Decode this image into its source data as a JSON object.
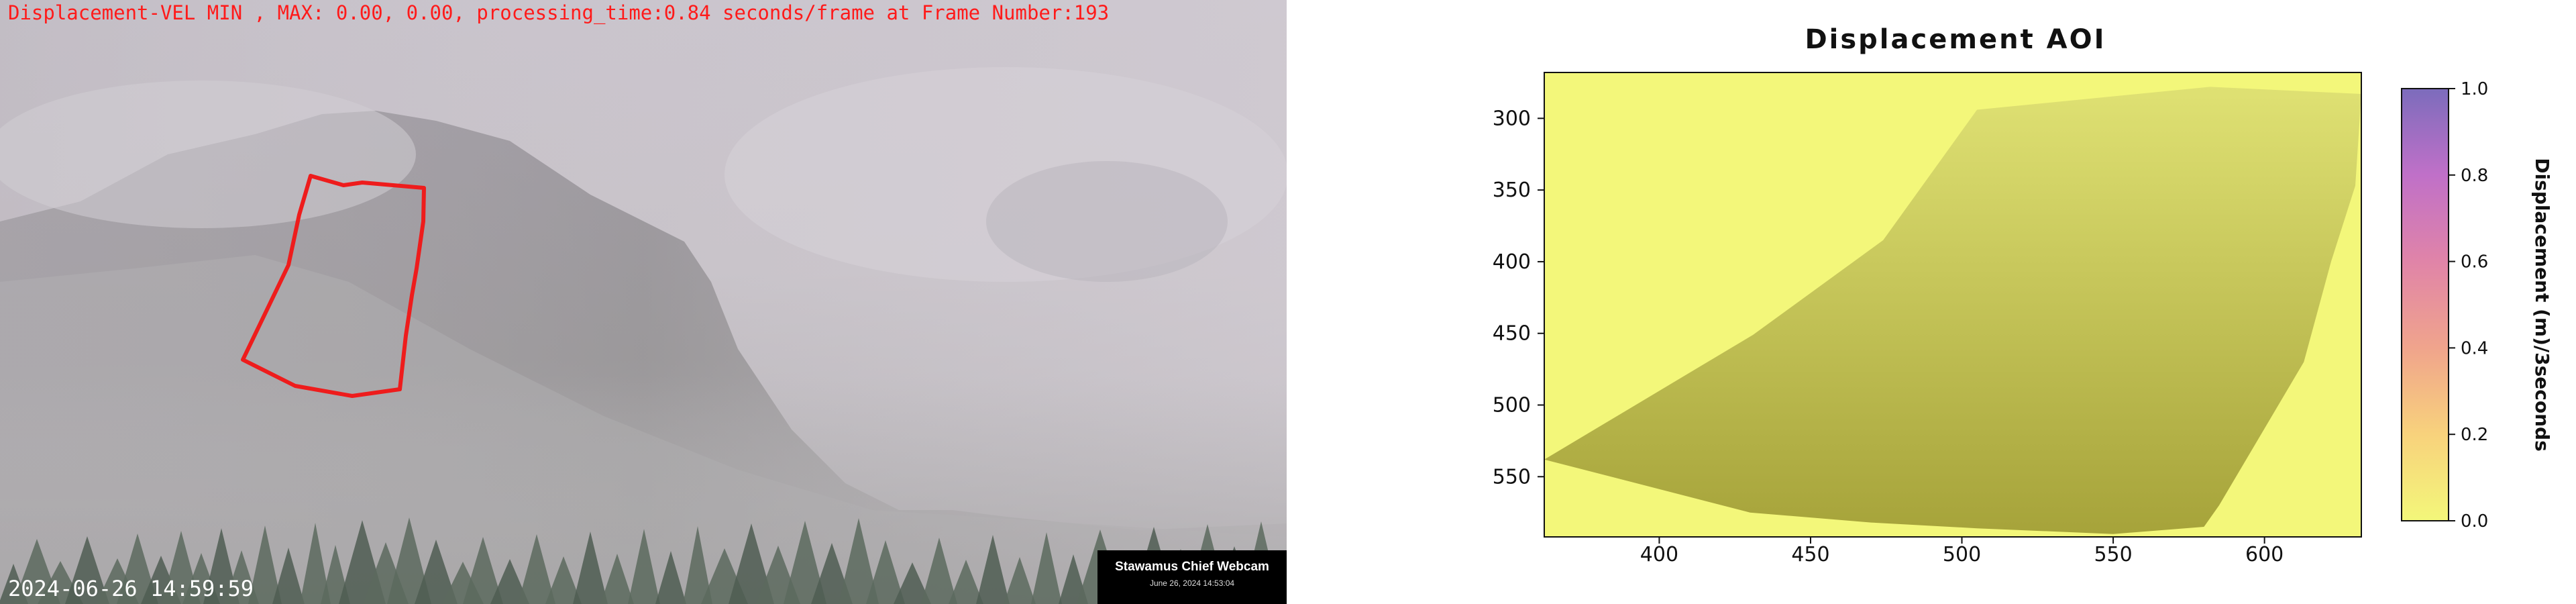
{
  "overlay": {
    "header": "Displacement-VEL MIN , MAX: 0.00, 0.00, processing_time:0.84 seconds/frame at Frame Number:193",
    "timestamp": "2024-06-26 14:59:59",
    "badge_title": "Stawamus Chief Webcam",
    "badge_date": "June 26, 2024 14:53:04",
    "aoi_color": "#ee1c1c"
  },
  "chart_data": {
    "type": "heatmap",
    "title": "Displacement AOI",
    "xlabel": "",
    "ylabel": "",
    "xlim": [
      362,
      632
    ],
    "ylim": [
      592,
      268
    ],
    "xticks": [
      400,
      450,
      500,
      550,
      600
    ],
    "yticks": [
      300,
      350,
      400,
      450,
      500,
      550
    ],
    "aoi_polygon": [
      [
        362,
        538
      ],
      [
        431,
        451
      ],
      [
        474,
        385
      ],
      [
        505,
        294
      ],
      [
        582,
        278
      ],
      [
        632,
        283
      ],
      [
        630,
        347
      ],
      [
        622,
        400
      ],
      [
        613,
        470
      ],
      [
        585,
        570
      ],
      [
        580,
        585
      ],
      [
        550,
        590
      ],
      [
        505,
        586
      ],
      [
        470,
        582
      ],
      [
        430,
        575
      ],
      [
        362,
        538
      ]
    ],
    "values_min": 0.0,
    "values_max": 0.0,
    "colorbar": {
      "label": "Displacement (m)/3seconds",
      "ticks": [
        0.0,
        0.2,
        0.4,
        0.6,
        0.8,
        1.0
      ],
      "tick_labels": [
        "0.0",
        "0.2",
        "0.4",
        "0.6",
        "0.8",
        "1.0"
      ],
      "range": [
        0.0,
        1.0
      ],
      "colors": [
        "#f3f77a",
        "#f8d27c",
        "#f0a48c",
        "#e084a8",
        "#c070c8",
        "#7c6cbc"
      ]
    },
    "background_color": "#f3f77a",
    "aoi_color_top": "#dfe173",
    "aoi_color_bottom": "#a6a33a"
  }
}
